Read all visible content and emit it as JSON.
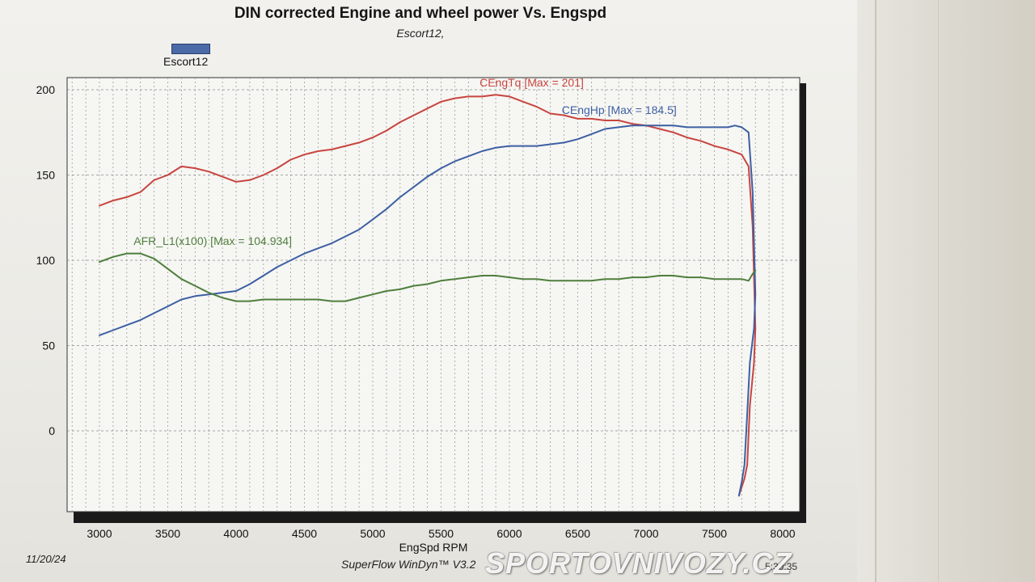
{
  "page": {
    "footer_date": "11/20/24",
    "footer_software": "SuperFlow WinDyn™ V3.2",
    "footer_time": "5:30:35",
    "watermark": "SPORTOVNIVOZY.CZ"
  },
  "legend": {
    "label": "Escort12",
    "color": "#4a6aa8"
  },
  "chart_data": {
    "type": "line",
    "title": "DIN corrected Engine and wheel power Vs. Engspd",
    "subtitle": "Escort12,",
    "xlabel": "EngSpd RPM",
    "ylabel": "",
    "xlim": [
      2800,
      8050
    ],
    "ylim": [
      -45,
      205
    ],
    "xticks": [
      3000,
      3500,
      4000,
      4500,
      5000,
      5500,
      6000,
      6500,
      7000,
      7500,
      8000
    ],
    "yticks": [
      0,
      50,
      100,
      150,
      200
    ],
    "grid": true,
    "series": [
      {
        "name": "CEngTq [Max = 201]",
        "color": "#c8453f",
        "x": [
          3000,
          3100,
          3200,
          3300,
          3400,
          3500,
          3600,
          3700,
          3800,
          3900,
          4000,
          4100,
          4200,
          4300,
          4400,
          4500,
          4600,
          4700,
          4800,
          4900,
          5000,
          5100,
          5200,
          5300,
          5400,
          5500,
          5600,
          5700,
          5800,
          5900,
          6000,
          6100,
          6200,
          6300,
          6400,
          6500,
          6600,
          6700,
          6800,
          6900,
          7000,
          7100,
          7200,
          7300,
          7400,
          7500,
          7600,
          7700,
          7750,
          7780,
          7800,
          7790,
          7760,
          7740,
          7720,
          7700,
          7680
        ],
        "y": [
          132,
          135,
          137,
          140,
          147,
          150,
          155,
          154,
          152,
          149,
          146,
          147,
          150,
          154,
          159,
          162,
          164,
          165,
          167,
          169,
          172,
          176,
          181,
          185,
          189,
          193,
          195,
          196,
          196,
          197,
          196,
          193,
          190,
          186,
          185,
          183,
          183,
          182,
          182,
          180,
          179,
          177,
          175,
          172,
          170,
          167,
          165,
          162,
          155,
          120,
          60,
          40,
          15,
          -20,
          -28,
          -33,
          -38
        ]
      },
      {
        "name": "CEngHp [Max = 184.5]",
        "color": "#3d5fa3",
        "x": [
          3000,
          3100,
          3200,
          3300,
          3400,
          3500,
          3600,
          3700,
          3800,
          3900,
          4000,
          4100,
          4200,
          4300,
          4400,
          4500,
          4600,
          4700,
          4800,
          4900,
          5000,
          5100,
          5200,
          5300,
          5400,
          5500,
          5600,
          5700,
          5800,
          5900,
          6000,
          6100,
          6200,
          6300,
          6400,
          6500,
          6600,
          6700,
          6800,
          6900,
          7000,
          7100,
          7200,
          7300,
          7400,
          7500,
          7600,
          7650,
          7700,
          7750,
          7780,
          7800,
          7790,
          7760,
          7740,
          7720,
          7700,
          7680
        ],
        "y": [
          56,
          59,
          62,
          65,
          69,
          73,
          77,
          79,
          80,
          81,
          82,
          86,
          91,
          96,
          100,
          104,
          107,
          110,
          114,
          118,
          124,
          130,
          137,
          143,
          149,
          154,
          158,
          161,
          164,
          166,
          167,
          167,
          167,
          168,
          169,
          171,
          174,
          177,
          178,
          179,
          179,
          179,
          179,
          178,
          178,
          178,
          178,
          179,
          178,
          175,
          140,
          80,
          60,
          40,
          10,
          -20,
          -30,
          -38
        ]
      },
      {
        "name": "AFR_L1(x100) [Max = 104.934]",
        "color": "#4e7f3c",
        "x": [
          3000,
          3100,
          3200,
          3300,
          3400,
          3500,
          3600,
          3700,
          3800,
          3900,
          4000,
          4100,
          4200,
          4300,
          4400,
          4500,
          4600,
          4700,
          4800,
          4900,
          5000,
          5100,
          5200,
          5300,
          5400,
          5500,
          5600,
          5700,
          5800,
          5900,
          6000,
          6100,
          6200,
          6300,
          6400,
          6500,
          6600,
          6700,
          6800,
          6900,
          7000,
          7100,
          7200,
          7300,
          7400,
          7500,
          7600,
          7700,
          7750,
          7780,
          7800
        ],
        "y": [
          99,
          102,
          104,
          104,
          101,
          95,
          89,
          85,
          81,
          78,
          76,
          76,
          77,
          77,
          77,
          77,
          77,
          76,
          76,
          78,
          80,
          82,
          83,
          85,
          86,
          88,
          89,
          90,
          91,
          91,
          90,
          89,
          89,
          88,
          88,
          88,
          88,
          89,
          89,
          90,
          90,
          91,
          91,
          90,
          90,
          89,
          89,
          89,
          88,
          92,
          94
        ]
      }
    ],
    "annotations": [
      {
        "text": "CEngTq [Max = 201]",
        "series": 0
      },
      {
        "text": "CEngHp [Max = 184.5]",
        "series": 1
      },
      {
        "text": "AFR_L1(x100) [Max = 104.934]",
        "series": 2
      }
    ]
  }
}
